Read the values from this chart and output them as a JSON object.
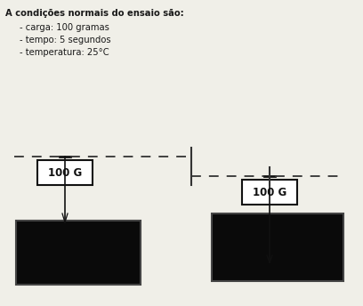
{
  "bg_color": "#f0efe8",
  "text_color": "#1a1a1a",
  "title_line": "A condições normais do ensaio são:",
  "bullets": [
    "- carga: 100 gramas",
    "- tempo: 5 segundos",
    "- temperatura: 25°C"
  ],
  "label": "100 G",
  "box_color": "#ffffff",
  "dark_color": "#111111",
  "container_fill": "#0a0a0a",
  "container_edge": "#444444",
  "dashed_color": "#333333",
  "needle_color": "#111111"
}
